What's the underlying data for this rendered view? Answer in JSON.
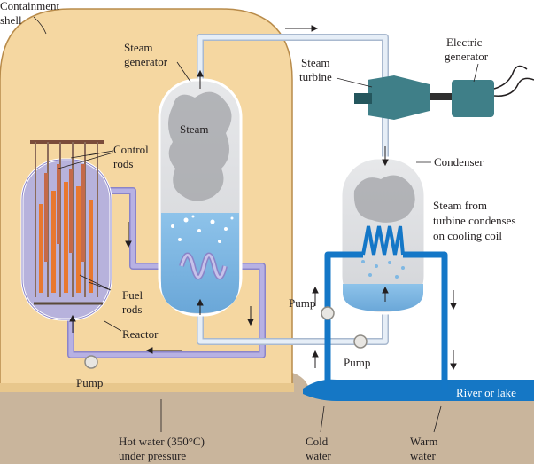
{
  "labels": {
    "containment_1": "Containment",
    "containment_2": "shell",
    "steam_gen_1": "Steam",
    "steam_gen_2": "generator",
    "steam_inside": "Steam",
    "steam_turbine_1": "Steam",
    "steam_turbine_2": "turbine",
    "electric_gen_1": "Electric",
    "electric_gen_2": "generator",
    "condenser": "Condenser",
    "steam_cond_1": "Steam from",
    "steam_cond_2": "turbine condenses",
    "steam_cond_3": "on cooling coil",
    "control_rods_1": "Control",
    "control_rods_2": "rods",
    "fuel_rods_1": "Fuel",
    "fuel_rods_2": "rods",
    "reactor": "Reactor",
    "pump_left": "Pump",
    "pump_mid": "Pump",
    "pump_cold": "Pump",
    "river": "River or lake",
    "hot_water_1": "Hot water (350°C)",
    "hot_water_2": "under pressure",
    "cold_water_1": "Cold",
    "cold_water_2": "water",
    "warm_water_1": "Warm",
    "warm_water_2": "water"
  },
  "colors": {
    "shell": "#f5d7a1",
    "shell_edge": "#b88b4a",
    "reactor": "#b7b2dc",
    "primary_loop": "#a59fd6",
    "secondary_loop": "#c9d8ea",
    "water": "#7fb8e3",
    "steam": "#b8b9bd",
    "cooling": "#1477c7",
    "river": "#1577c5",
    "ground": "#c7b39a",
    "machine": "#3f7f88",
    "rod": "#e8782f"
  },
  "icons": [
    "pump-icon",
    "turbine-icon",
    "generator-icon",
    "cooling-coil-icon",
    "heat-exchanger-coil-icon"
  ]
}
